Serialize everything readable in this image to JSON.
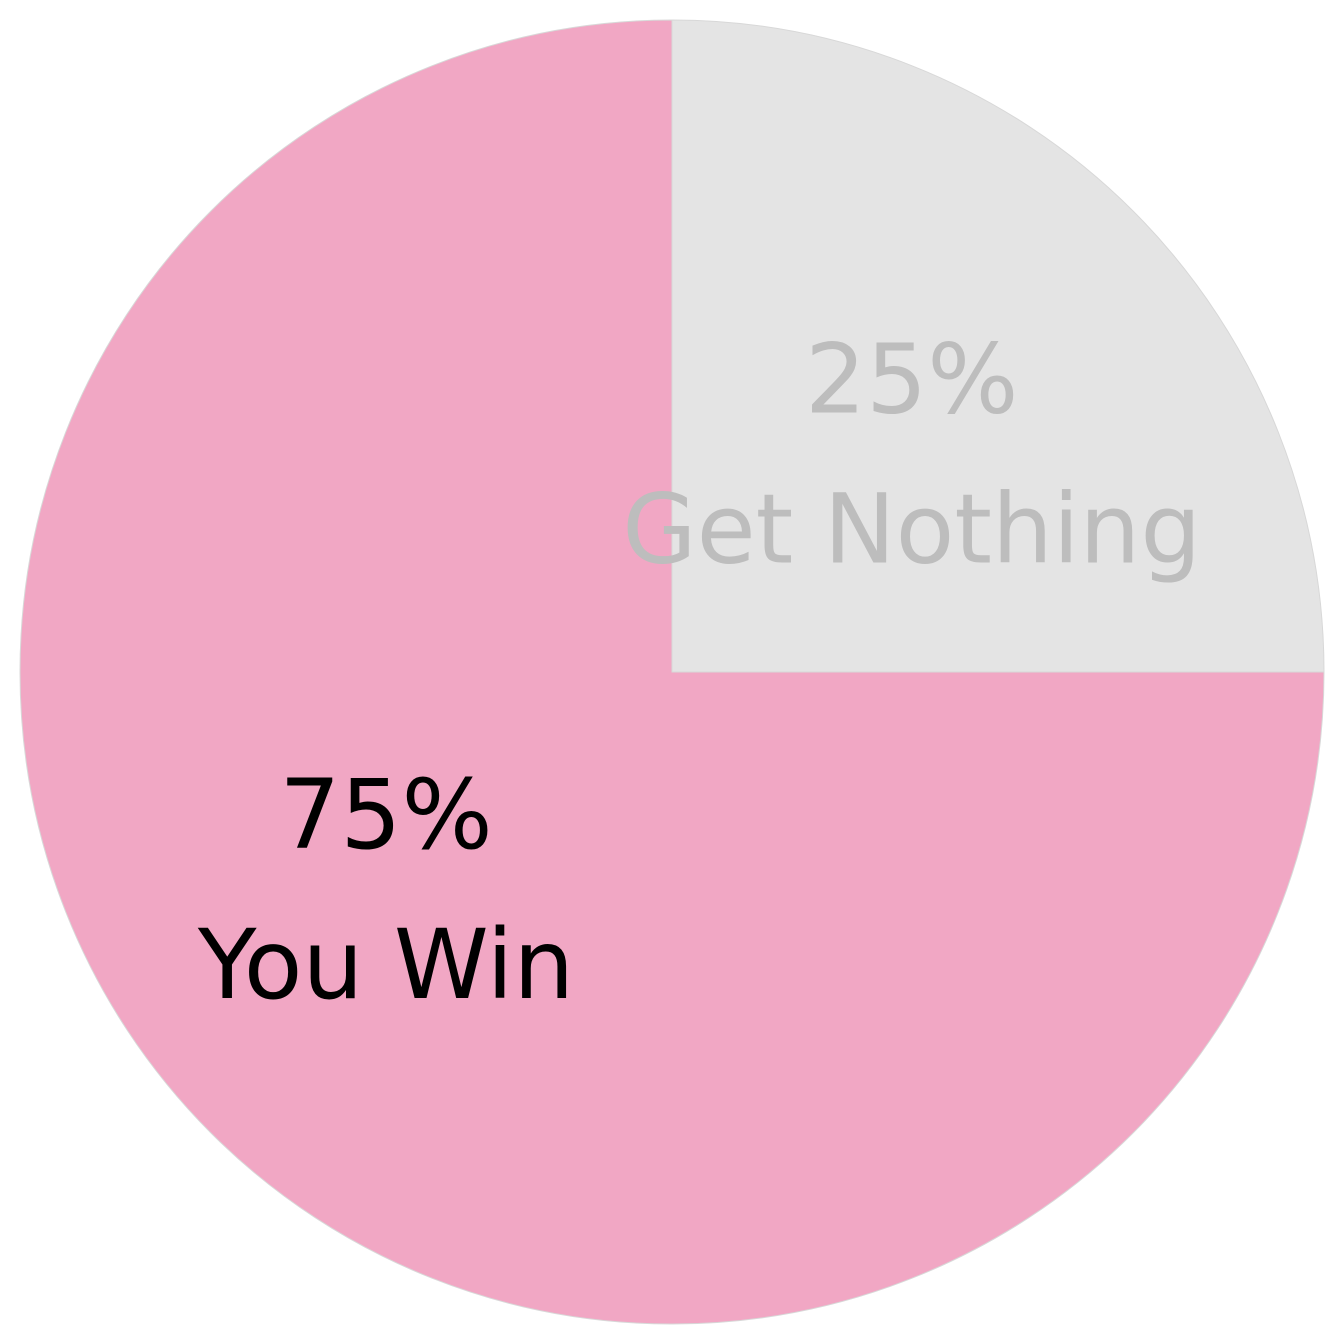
{
  "chart_data": {
    "type": "pie",
    "start_angle_deg": 0,
    "direction": "clockwise",
    "slices": [
      {
        "label": "Get Nothing",
        "value": 25,
        "percent_label": "25%",
        "color": "#E4E4E4",
        "label_color": "#BDBDBD"
      },
      {
        "label": "You Win",
        "value": 75,
        "percent_label": "75%",
        "color": "#F1A7C4",
        "label_color": "#000000"
      }
    ]
  }
}
